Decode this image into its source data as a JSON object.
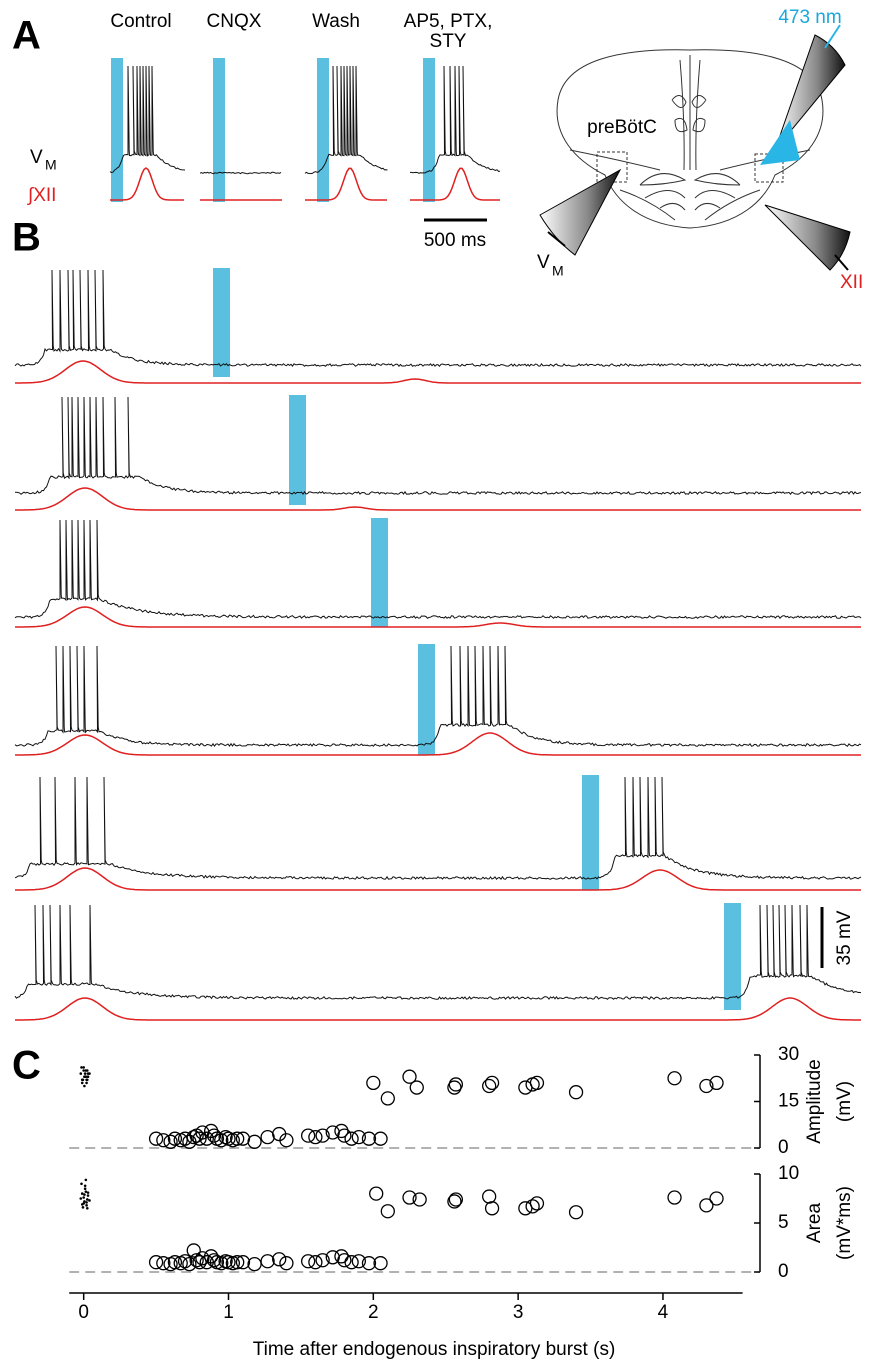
{
  "panel_letters": [
    "A",
    "B",
    "C"
  ],
  "panel_a": {
    "condition_labels": [
      "Control",
      "CNQX",
      "Wash",
      "AP5, PTX,",
      "STY"
    ],
    "vm_label": {
      "main": "V",
      "sub": "M"
    },
    "xii_label": "∫XII",
    "scale_label": "500 ms"
  },
  "diagram": {
    "wavelength": "473 nm",
    "region": "preBötC",
    "vm_label": {
      "main": "V",
      "sub": "M"
    },
    "xii_label": "XII"
  },
  "panel_b": {
    "scale_label": "35 mV"
  },
  "x_axis": {
    "xlabel": "Time after endogenous inspiratory burst (s)"
  },
  "chart_data": [
    {
      "type": "scatter",
      "ylabel": [
        "Amplitude",
        "(mV)"
      ],
      "xlim": [
        -0.1,
        4.55
      ],
      "ylim": [
        0,
        30
      ],
      "yticks": [
        0,
        15,
        30
      ],
      "xticks": [
        0,
        1,
        2,
        3,
        4
      ],
      "zero_line": true,
      "series": [
        {
          "marker": "dot",
          "color": "#000000",
          "x": [
            -0.02,
            -0.01,
            0,
            0.01,
            0.02,
            0.03,
            -0.015,
            0.005,
            0.015,
            0.025,
            -0.005,
            0.01,
            0.02,
            0,
            0.03,
            -0.01,
            0.04,
            0.015,
            0.005,
            0.025
          ],
          "values": [
            24,
            22,
            25,
            23,
            21,
            24,
            26,
            20,
            23,
            25,
            22,
            24,
            22,
            26,
            23,
            21,
            24,
            25,
            23,
            22
          ]
        },
        {
          "marker": "circle",
          "color": "#000000",
          "x": [
            0.5,
            0.55,
            0.6,
            0.63,
            0.67,
            0.7,
            0.73,
            0.76,
            0.78,
            0.8,
            0.82,
            0.85,
            0.88,
            0.9,
            0.92,
            0.95,
            0.98,
            1.0,
            1.03,
            1.06,
            1.1,
            1.18,
            1.27,
            1.35,
            1.4,
            1.55,
            1.6,
            1.65,
            1.72,
            1.78,
            1.8,
            1.85,
            1.9,
            1.97,
            2.05,
            2.0,
            2.1,
            2.25,
            2.3,
            2.56,
            2.57,
            2.8,
            2.82,
            3.05,
            3.1,
            3.13,
            3.4,
            4.08,
            4.3,
            4.37
          ],
          "values": [
            3,
            2.5,
            2,
            3,
            2.5,
            3,
            2,
            3.5,
            4,
            3,
            5,
            3,
            5.5,
            4,
            3,
            2.5,
            3.5,
            3,
            2.5,
            3,
            3,
            2,
            3.5,
            4.5,
            2.5,
            4,
            3.5,
            4,
            5,
            5.5,
            4,
            3,
            3.5,
            3,
            3,
            21,
            16,
            23,
            19.5,
            19.5,
            20.5,
            20,
            21,
            19.5,
            20.5,
            21,
            18,
            22.5,
            20,
            21
          ]
        }
      ]
    },
    {
      "type": "scatter",
      "ylabel": [
        "Area",
        "(mV*ms)"
      ],
      "xlim": [
        -0.1,
        4.55
      ],
      "ylim": [
        0,
        10
      ],
      "yticks": [
        0,
        5,
        10
      ],
      "xticks": [
        0,
        1,
        2,
        3,
        4
      ],
      "zero_line": true,
      "series": [
        {
          "marker": "dot",
          "color": "#000000",
          "x": [
            -0.02,
            -0.01,
            0,
            0.01,
            0.02,
            0.03,
            -0.015,
            0.005,
            0.015,
            0.025,
            -0.005,
            0.01,
            0.02,
            0,
            0.03,
            -0.01,
            0.04,
            0.015,
            0.005,
            0.025
          ],
          "values": [
            7.5,
            8,
            7,
            8.5,
            6.8,
            7.8,
            9,
            7.2,
            8.2,
            7.4,
            6.6,
            8.8,
            7.1,
            7.6,
            8.1,
            6.9,
            7.3,
            9.4,
            7.9,
            6.5
          ]
        },
        {
          "marker": "circle",
          "color": "#000000",
          "x": [
            0.5,
            0.55,
            0.6,
            0.63,
            0.67,
            0.7,
            0.73,
            0.76,
            0.78,
            0.8,
            0.82,
            0.85,
            0.88,
            0.9,
            0.92,
            0.95,
            0.98,
            1.0,
            1.03,
            1.06,
            1.1,
            1.18,
            1.27,
            1.35,
            1.4,
            1.55,
            1.6,
            1.65,
            1.72,
            1.78,
            1.8,
            1.85,
            1.9,
            1.97,
            2.05,
            2.02,
            2.1,
            2.25,
            2.32,
            2.56,
            2.57,
            2.8,
            2.82,
            3.05,
            3.1,
            3.13,
            3.4,
            4.08,
            4.3,
            4.37
          ],
          "values": [
            1,
            0.9,
            0.8,
            1,
            0.9,
            1.1,
            0.8,
            2.2,
            1.2,
            1,
            1.4,
            1,
            1.6,
            1.2,
            1,
            0.9,
            1.1,
            1,
            0.9,
            1,
            1,
            0.8,
            1.1,
            1.3,
            0.9,
            1.1,
            1,
            1.2,
            1.5,
            1.6,
            1.2,
            1,
            1.1,
            0.9,
            0.9,
            8,
            6.2,
            7.6,
            7.4,
            7.2,
            7.4,
            7.7,
            6.5,
            6.5,
            6.7,
            7,
            6.1,
            7.6,
            6.8,
            7.5
          ]
        }
      ]
    }
  ]
}
